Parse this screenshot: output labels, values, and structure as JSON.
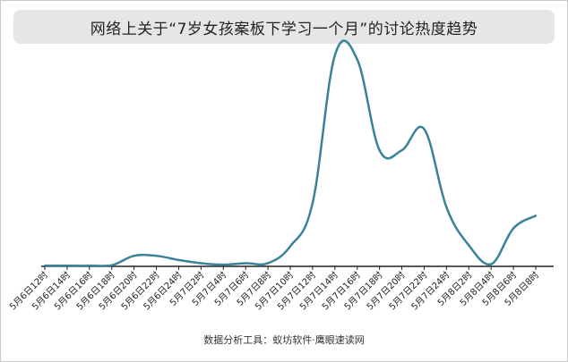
{
  "chart_data": {
    "type": "line",
    "title": "网络上关于“7岁女孩案板下学习一个月”的讨论热度趋势",
    "xlabel": "",
    "ylabel": "",
    "x": [
      "5月6日12时",
      "5月6日14时",
      "5月6日16时",
      "5月6日18时",
      "5月6日20时",
      "5月6日22时",
      "5月6日24时",
      "5月7日2时",
      "5月7日4时",
      "5月7日6时",
      "5月7日8时",
      "5月7日10时",
      "5月7日12时",
      "5月7日14时",
      "5月7日16时",
      "5月7日18时",
      "5月7日20时",
      "5月7日22时",
      "5月7日24时",
      "5月8日2时",
      "5月8日4时",
      "5月8日6时",
      "5月8日8时"
    ],
    "series": [
      {
        "values": [
          0.3,
          0.3,
          0.3,
          0.5,
          5,
          5,
          3,
          1.5,
          0.8,
          1.5,
          1.5,
          9.5,
          30,
          100,
          98,
          55,
          55,
          65,
          28,
          10,
          1,
          18,
          24
        ]
      }
    ],
    "ylim": [
      0,
      105
    ],
    "grid": false,
    "legend": "none",
    "line_color": "#3a8299",
    "axis_color": "#222222"
  },
  "source": "数据分析工具：蚁坊软件·鹰眼速读网"
}
